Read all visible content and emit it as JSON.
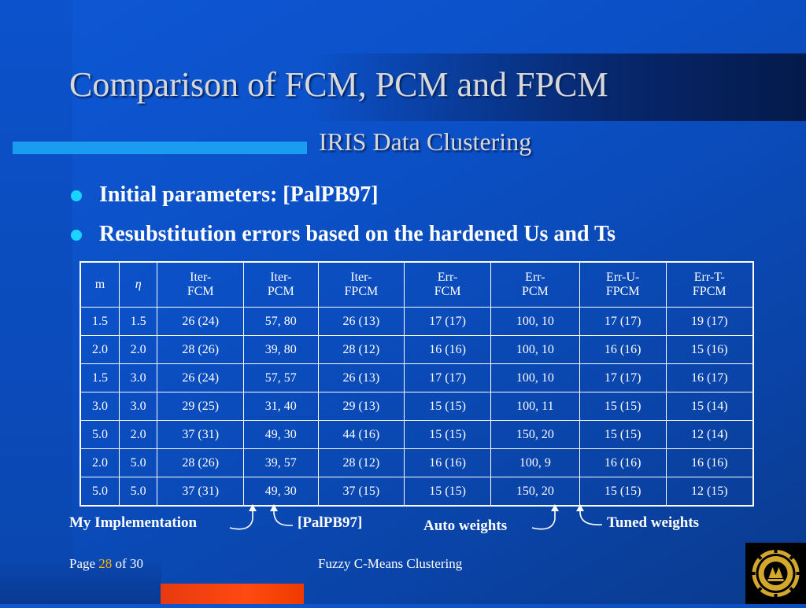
{
  "title": "Comparison of FCM, PCM and FPCM",
  "subtitle": "IRIS Data Clustering",
  "bullets": [
    "Initial parameters: [PalPB97]",
    "Resubstitution errors based on the hardened Us and Ts"
  ],
  "table": {
    "headers": [
      [
        "m"
      ],
      [
        "η"
      ],
      [
        "Iter-",
        "FCM"
      ],
      [
        "Iter-",
        "PCM"
      ],
      [
        "Iter-",
        "FPCM"
      ],
      [
        "Err-",
        "FCM"
      ],
      [
        "Err-",
        "PCM"
      ],
      [
        "Err-U-",
        "FPCM"
      ],
      [
        "Err-T-",
        "FPCM"
      ]
    ],
    "rows": [
      [
        "1.5",
        "1.5",
        "26 (24)",
        "57, 80",
        "26 (13)",
        "17 (17)",
        "100, 10",
        "17 (17)",
        "19 (17)"
      ],
      [
        "2.0",
        "2.0",
        "28 (26)",
        "39, 80",
        "28 (12)",
        "16 (16)",
        "100, 10",
        "16 (16)",
        "15 (16)"
      ],
      [
        "1.5",
        "3.0",
        "26 (24)",
        "57, 57",
        "26 (13)",
        "17 (17)",
        "100, 10",
        "17 (17)",
        "16 (17)"
      ],
      [
        "3.0",
        "3.0",
        "29 (25)",
        "31, 40",
        "29 (13)",
        "15 (15)",
        "100, 11",
        "15 (15)",
        "15 (14)"
      ],
      [
        "5.0",
        "2.0",
        "37 (31)",
        "49, 30",
        "44 (16)",
        "15 (15)",
        "150, 20",
        "15 (15)",
        "12 (14)"
      ],
      [
        "2.0",
        "5.0",
        "28 (26)",
        "39, 57",
        "28 (12)",
        "16 (16)",
        "100, 9",
        "16 (16)",
        "16 (16)"
      ],
      [
        "5.0",
        "5.0",
        "37 (31)",
        "49, 30",
        "37 (15)",
        "15 (15)",
        "150, 20",
        "15 (15)",
        "12 (15)"
      ]
    ]
  },
  "annotations": {
    "my_implementation": "My Implementation",
    "palpb97": "[PalPB97]",
    "auto_weights": "Auto weights",
    "tuned_weights": "Tuned weights"
  },
  "footer": {
    "page_prefix": "Page",
    "page_number": "28",
    "page_of": "of 30",
    "center_text": "Fuzzy C-Means Clustering"
  },
  "logo_icon": "university-emblem-icon",
  "colors": {
    "background": "#0b4fc4",
    "accent_bar": "#1a9cf0",
    "bottom_accent": "#ff4a10",
    "bullet": "#1ad4ff",
    "page_number": "#ffb400"
  }
}
